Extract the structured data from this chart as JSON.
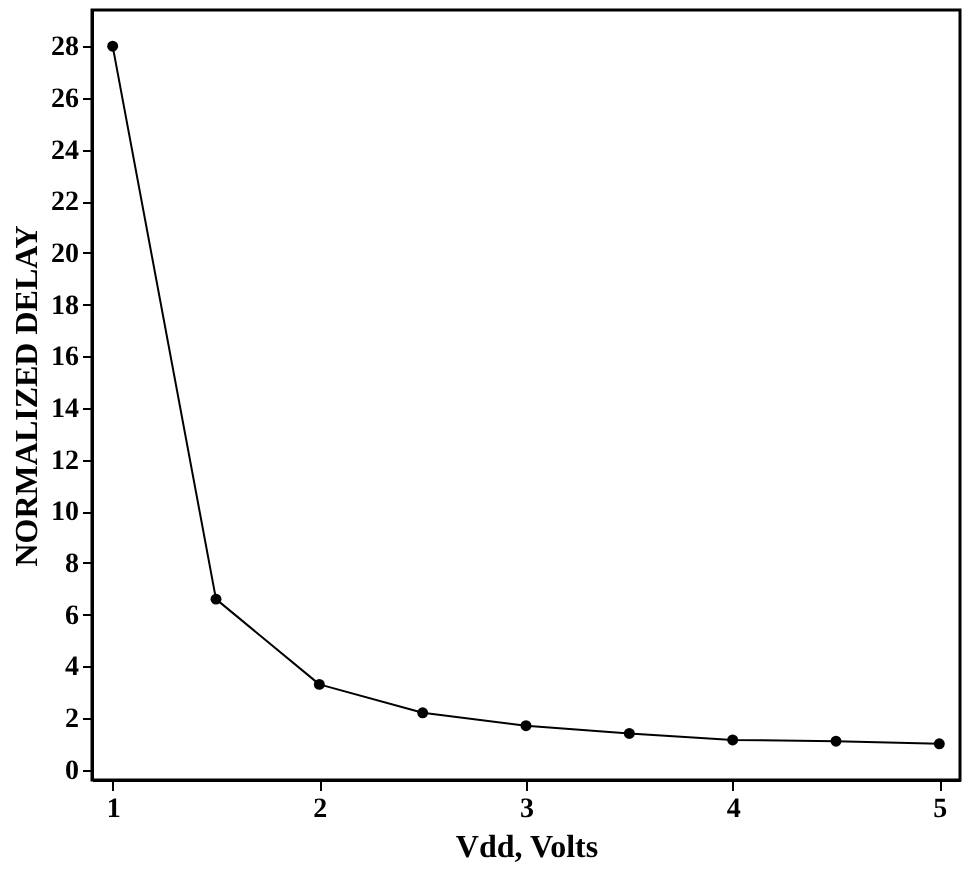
{
  "chart_data": {
    "type": "line",
    "xlabel": "Vdd, Volts",
    "ylabel": "NORMALIZED DELAY",
    "x": [
      1,
      1.5,
      2,
      2.5,
      3,
      3.5,
      4,
      4.5,
      5
    ],
    "series": [
      {
        "color": "#000000",
        "values": [
          28,
          6.6,
          3.3,
          2.2,
          1.7,
          1.4,
          1.15,
          1.1,
          1.0
        ]
      }
    ],
    "xlim": [
      0.9,
      5.1
    ],
    "xticks": [
      1,
      2,
      3,
      4,
      5
    ],
    "ylim": [
      -0.4,
      29.4
    ],
    "yticks": [
      0,
      2,
      4,
      6,
      8,
      10,
      12,
      14,
      16,
      18,
      20,
      22,
      24,
      26,
      28
    ],
    "marker": "circle",
    "line_style": "solid",
    "grid": false,
    "legend": false
  }
}
